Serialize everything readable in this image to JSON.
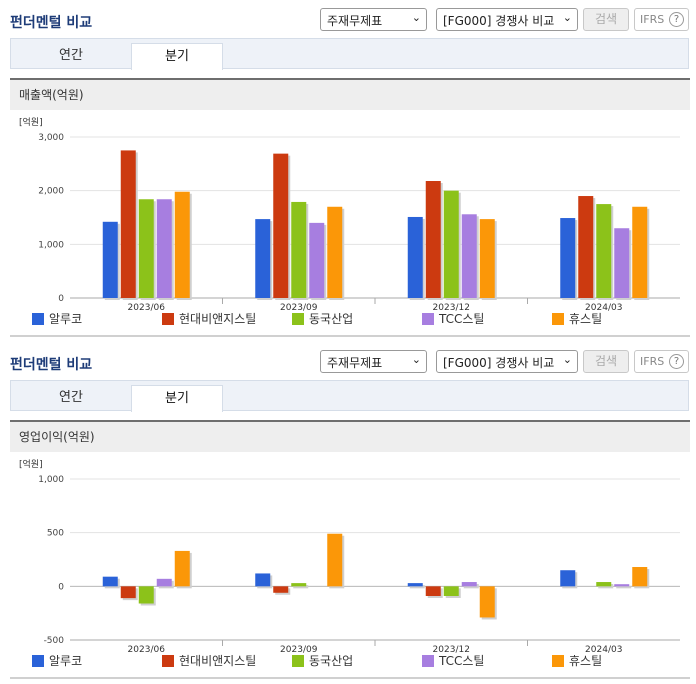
{
  "panels": [
    {
      "title": "펀더멘털 비교",
      "select1": "주재무제표",
      "select2": "[FG000] 경쟁사 비교",
      "search_label": "검색",
      "ifrs_label": "IFRS",
      "help_icon": "?",
      "tabs": [
        "연간",
        "분기"
      ],
      "metric_label": "매출액(억원)"
    },
    {
      "title": "펀더멘털 비교",
      "select1": "주재무제표",
      "select2": "[FG000] 경쟁사 비교",
      "search_label": "검색",
      "ifrs_label": "IFRS",
      "help_icon": "?",
      "tabs": [
        "연간",
        "분기"
      ],
      "metric_label": "영업이익(억원)"
    }
  ],
  "chart_data": [
    {
      "type": "bar",
      "unit_label": "[억원]",
      "categories": [
        "2023/06",
        "2023/09",
        "2023/12",
        "2024/03"
      ],
      "ylim": [
        0,
        3000
      ],
      "yticks": [
        0,
        1000,
        2000,
        3000
      ],
      "ytick_labels": [
        "0",
        "1,000",
        "2,000",
        "3,000"
      ],
      "series": [
        {
          "name": "알루코",
          "color": "#2a62d8",
          "values": [
            1420,
            1470,
            1510,
            1490
          ]
        },
        {
          "name": "현대비앤지스틸",
          "color": "#cc3a10",
          "values": [
            2750,
            2690,
            2180,
            1900
          ]
        },
        {
          "name": "동국산업",
          "color": "#8cc21a",
          "values": [
            1840,
            1790,
            2000,
            1750
          ]
        },
        {
          "name": "TCC스틸",
          "color": "#a77ee0",
          "values": [
            1840,
            1400,
            1560,
            1300
          ]
        },
        {
          "name": "휴스틸",
          "color": "#fb9708",
          "values": [
            1980,
            1700,
            1470,
            1700
          ]
        }
      ]
    },
    {
      "type": "bar",
      "unit_label": "[억원]",
      "categories": [
        "2023/06",
        "2023/09",
        "2023/12",
        "2024/03"
      ],
      "ylim": [
        -500,
        1000
      ],
      "yticks": [
        -500,
        0,
        500,
        1000
      ],
      "ytick_labels": [
        "-500",
        "0",
        "500",
        "1,000"
      ],
      "series": [
        {
          "name": "알루코",
          "color": "#2a62d8",
          "values": [
            90,
            120,
            30,
            150
          ]
        },
        {
          "name": "현대비앤지스틸",
          "color": "#cc3a10",
          "values": [
            -110,
            -60,
            -90,
            0
          ]
        },
        {
          "name": "동국산업",
          "color": "#8cc21a",
          "values": [
            -160,
            30,
            -90,
            40
          ]
        },
        {
          "name": "TCC스틸",
          "color": "#a77ee0",
          "values": [
            70,
            0,
            40,
            20
          ]
        },
        {
          "name": "휴스틸",
          "color": "#fb9708",
          "values": [
            330,
            490,
            -290,
            180
          ]
        }
      ]
    }
  ]
}
